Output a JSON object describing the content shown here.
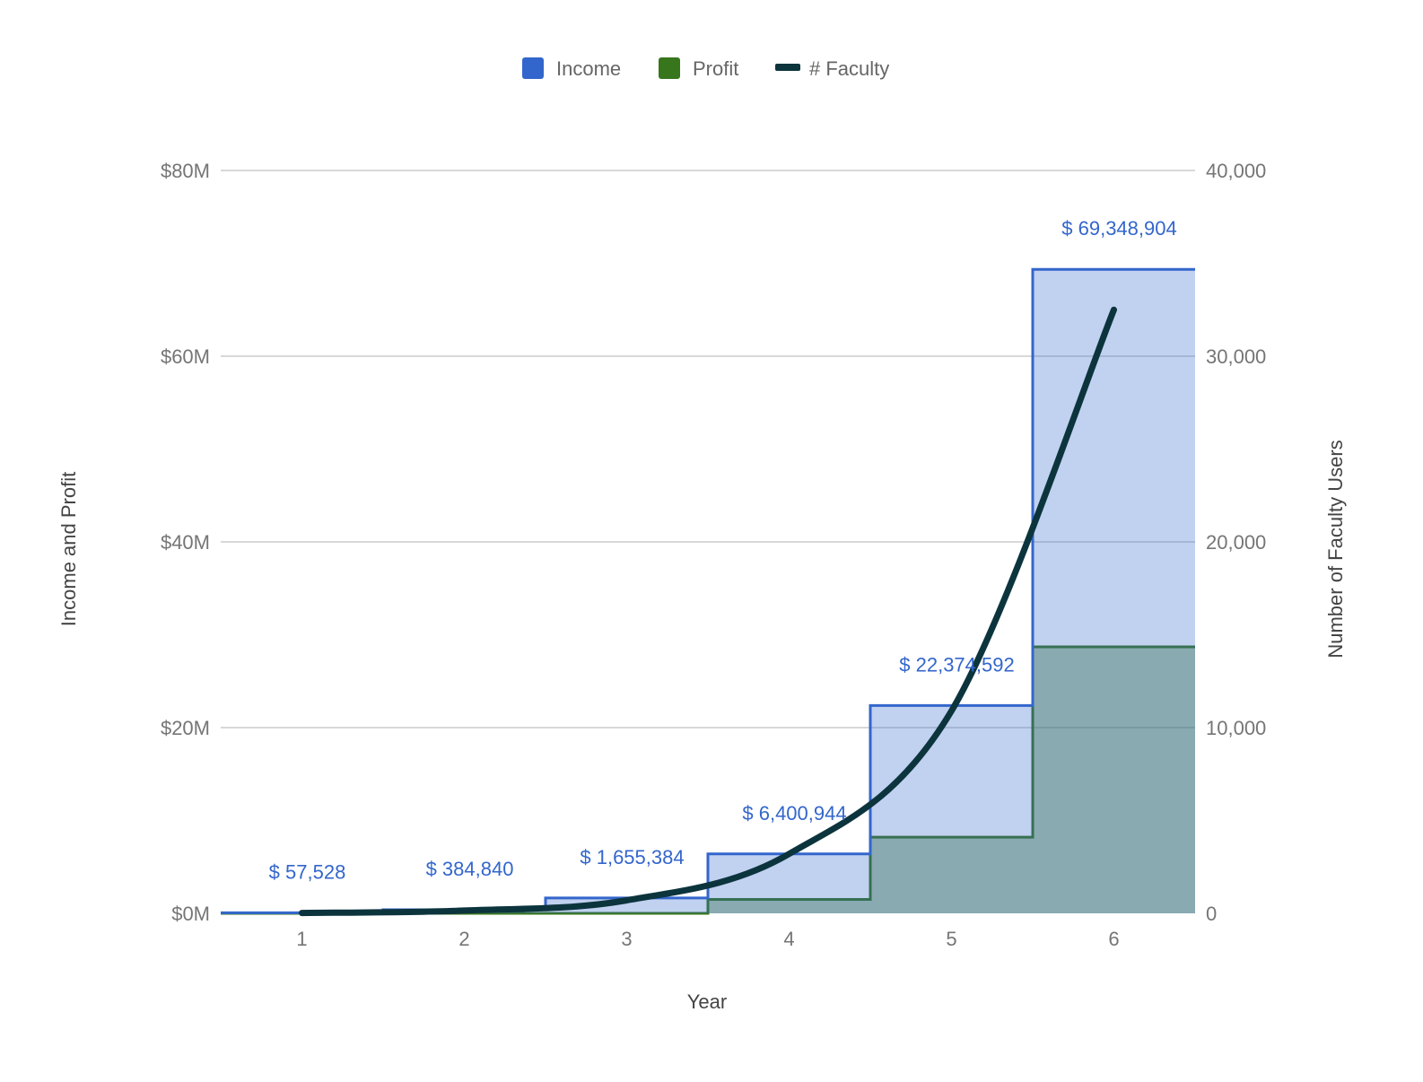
{
  "chart_data": {
    "type": "area",
    "stepped": true,
    "categories": [
      "1",
      "2",
      "3",
      "4",
      "5",
      "6"
    ],
    "xlabel": "Year",
    "ylabel": "Income and Profit",
    "y2label": "Number of Faculty Users",
    "ylim": [
      0,
      80000000
    ],
    "y2lim": [
      0,
      40000
    ],
    "yticks": [
      "$0M",
      "$20M",
      "$40M",
      "$60M",
      "$80M"
    ],
    "y2ticks": [
      "0",
      "10,000",
      "20,000",
      "30,000",
      "40,000"
    ],
    "grid": true,
    "legend_position": "top",
    "series": [
      {
        "name": "Income",
        "type": "stepped-area",
        "axis": "left",
        "color": "#3366cc",
        "values": [
          57528,
          384840,
          1655384,
          6400944,
          22374592,
          69348904
        ],
        "labels": [
          "$ 57,528",
          "$ 384,840",
          "$ 1,655,384",
          "$ 6,400,944",
          "$ 22,374,592",
          "$ 69,348,904"
        ]
      },
      {
        "name": "Profit",
        "type": "stepped-area",
        "axis": "left",
        "color": "#38761d",
        "values": [
          0,
          0,
          0,
          1500000,
          8200000,
          28700000
        ]
      },
      {
        "name": "# Faculty",
        "type": "line",
        "axis": "right",
        "color": "#0c343d",
        "values": [
          20,
          150,
          700,
          3200,
          10900,
          32500
        ]
      }
    ]
  }
}
